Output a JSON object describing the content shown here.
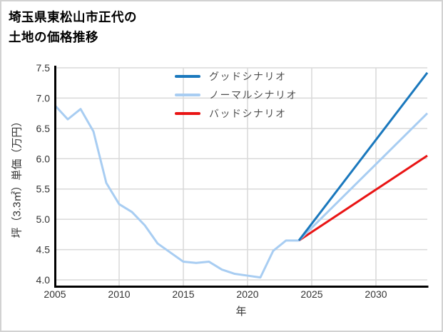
{
  "title": {
    "line1": "埼玉県東松山市正代の",
    "line2": "土地の価格推移"
  },
  "chart_data": {
    "type": "line",
    "title": "埼玉県東松山市正代の土地の価格推移",
    "xlabel": "年",
    "ylabel": "坪（3.3㎡）単価（万円）",
    "xlim": [
      2005,
      2034
    ],
    "ylim": [
      3.9,
      7.5
    ],
    "x_ticks": [
      2005,
      2010,
      2015,
      2020,
      2025,
      2030
    ],
    "y_ticks": [
      4.0,
      4.5,
      5.0,
      5.5,
      6.0,
      6.5,
      7.0,
      7.5
    ],
    "grid": true,
    "legend_position": "top-center",
    "legend": [
      {
        "label": "グッドシナリオ",
        "color": "#1a78bd"
      },
      {
        "label": "ノーマルシナリオ",
        "color": "#a8cdf2"
      },
      {
        "label": "バッドシナリオ",
        "color": "#e91414"
      }
    ],
    "series": [
      {
        "id": "history",
        "color": "#a8cdf2",
        "x": [
          2005,
          2006,
          2007,
          2008,
          2009,
          2010,
          2011,
          2012,
          2013,
          2014,
          2015,
          2016,
          2017,
          2018,
          2019,
          2020,
          2021,
          2022,
          2023,
          2024
        ],
        "values": [
          6.88,
          6.65,
          6.82,
          6.45,
          5.6,
          5.25,
          5.12,
          4.9,
          4.6,
          4.45,
          4.3,
          4.28,
          4.3,
          4.17,
          4.1,
          4.07,
          4.04,
          4.48,
          4.65,
          4.65
        ]
      },
      {
        "id": "bad-scenario",
        "legend": "バッドシナリオ",
        "color": "#e91414",
        "x": [
          2024,
          2034
        ],
        "values": [
          4.65,
          6.05
        ]
      },
      {
        "id": "normal-scenario",
        "legend": "ノーマルシナリオ",
        "color": "#a8cdf2",
        "x": [
          2024,
          2034
        ],
        "values": [
          4.65,
          6.75
        ]
      },
      {
        "id": "good-scenario",
        "legend": "グッドシナリオ",
        "color": "#1a78bd",
        "x": [
          2024,
          2034
        ],
        "values": [
          4.65,
          7.42
        ]
      }
    ],
    "style": {
      "grid_color": "#d9d9d9",
      "axis_color": "#000000",
      "tick_label_color": "#333333",
      "line_width": 3
    }
  }
}
